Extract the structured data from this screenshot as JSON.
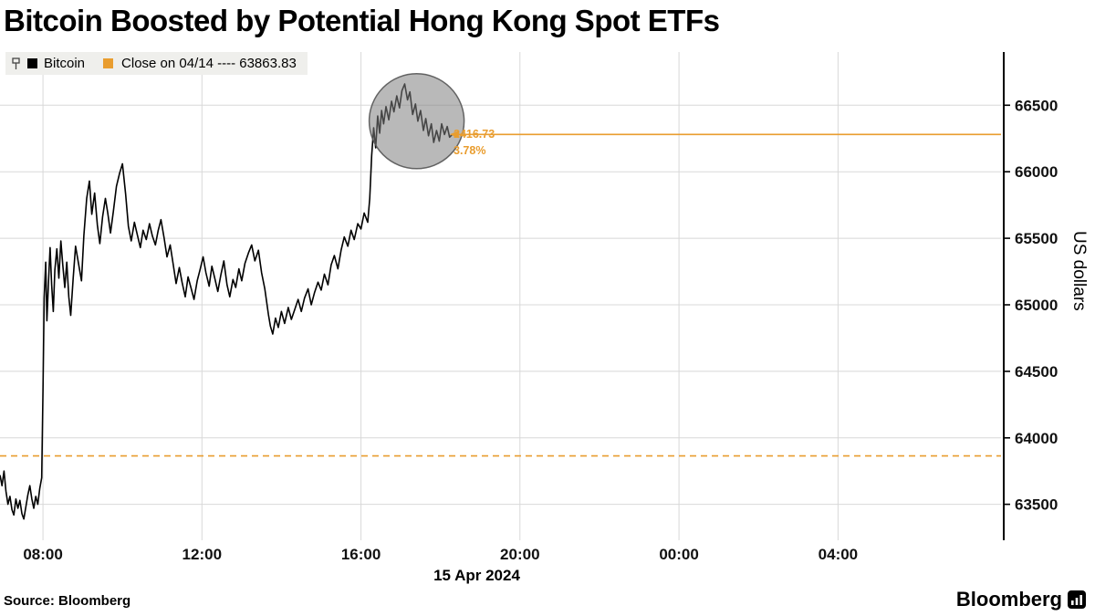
{
  "title": "Bitcoin Boosted by Potential Hong Kong Spot ETFs",
  "legend": {
    "series_label": "Bitcoin",
    "close_label": "Close on 04/14 ---- 63863.83"
  },
  "annotations": {
    "change_value": "2416.73",
    "change_pct": "3.78%"
  },
  "axes": {
    "y_title": "US dollars",
    "x_date_label": "15 Apr 2024"
  },
  "source": "Source: Bloomberg",
  "brand": "Bloomberg",
  "chart_data": {
    "type": "line",
    "title": "Bitcoin Boosted by Potential Hong Kong Spot ETFs",
    "xlabel": "15 Apr 2024",
    "ylabel": "US dollars",
    "ylim": [
      63230,
      66900
    ],
    "xlim_hours": [
      6.92,
      32.1
    ],
    "grid": true,
    "legend_position": "top-left",
    "colors": {
      "line": "#000000",
      "orange": "#e99d2f",
      "grid": "#d8d8d8",
      "axis": "#000000",
      "highlight_fill": "rgba(128,128,128,0.55)",
      "highlight_stroke": "rgba(85,85,85,0.9)"
    },
    "y_ticks": [
      63500,
      64000,
      64500,
      65000,
      65500,
      66000,
      66500
    ],
    "x_ticks": [
      {
        "hour": 8,
        "label": "08:00"
      },
      {
        "hour": 12,
        "label": "12:00"
      },
      {
        "hour": 16,
        "label": "16:00"
      },
      {
        "hour": 20,
        "label": "20:00"
      },
      {
        "hour": 24,
        "label": "00:00"
      },
      {
        "hour": 28,
        "label": "04:00"
      }
    ],
    "close_line": {
      "value": 63863.83,
      "label": "Close on 04/14 ---- 63863.83",
      "style": "dashed"
    },
    "last_line": {
      "value": 66280.56,
      "change": "2416.73",
      "pct": "3.78%"
    },
    "highlight_circle": {
      "hour": 17.4,
      "price": 66380,
      "radius_px": 52
    },
    "series": [
      {
        "name": "Bitcoin",
        "color": "#000000",
        "points": [
          [
            6.92,
            63720
          ],
          [
            6.97,
            63640
          ],
          [
            7.02,
            63750
          ],
          [
            7.07,
            63600
          ],
          [
            7.12,
            63500
          ],
          [
            7.17,
            63560
          ],
          [
            7.22,
            63460
          ],
          [
            7.27,
            63420
          ],
          [
            7.32,
            63540
          ],
          [
            7.37,
            63470
          ],
          [
            7.42,
            63530
          ],
          [
            7.47,
            63430
          ],
          [
            7.52,
            63390
          ],
          [
            7.57,
            63480
          ],
          [
            7.62,
            63570
          ],
          [
            7.67,
            63640
          ],
          [
            7.72,
            63540
          ],
          [
            7.77,
            63470
          ],
          [
            7.82,
            63560
          ],
          [
            7.87,
            63500
          ],
          [
            7.92,
            63620
          ],
          [
            7.97,
            63700
          ],
          [
            8.0,
            64350
          ],
          [
            8.03,
            65050
          ],
          [
            8.07,
            65320
          ],
          [
            8.1,
            64880
          ],
          [
            8.14,
            65180
          ],
          [
            8.18,
            65430
          ],
          [
            8.22,
            65150
          ],
          [
            8.26,
            64950
          ],
          [
            8.3,
            65260
          ],
          [
            8.35,
            65420
          ],
          [
            8.4,
            65200
          ],
          [
            8.45,
            65480
          ],
          [
            8.5,
            65300
          ],
          [
            8.55,
            65130
          ],
          [
            8.6,
            65320
          ],
          [
            8.65,
            65060
          ],
          [
            8.7,
            64920
          ],
          [
            8.76,
            65200
          ],
          [
            8.82,
            65440
          ],
          [
            8.9,
            65300
          ],
          [
            8.97,
            65180
          ],
          [
            9.03,
            65520
          ],
          [
            9.1,
            65800
          ],
          [
            9.17,
            65930
          ],
          [
            9.23,
            65680
          ],
          [
            9.3,
            65840
          ],
          [
            9.37,
            65600
          ],
          [
            9.43,
            65460
          ],
          [
            9.5,
            65660
          ],
          [
            9.57,
            65800
          ],
          [
            9.63,
            65690
          ],
          [
            9.7,
            65540
          ],
          [
            9.77,
            65700
          ],
          [
            9.85,
            65890
          ],
          [
            9.93,
            65990
          ],
          [
            10.0,
            66060
          ],
          [
            10.08,
            65830
          ],
          [
            10.15,
            65590
          ],
          [
            10.22,
            65480
          ],
          [
            10.3,
            65620
          ],
          [
            10.38,
            65520
          ],
          [
            10.45,
            65430
          ],
          [
            10.52,
            65560
          ],
          [
            10.6,
            65490
          ],
          [
            10.68,
            65610
          ],
          [
            10.75,
            65520
          ],
          [
            10.83,
            65450
          ],
          [
            10.9,
            65560
          ],
          [
            10.97,
            65640
          ],
          [
            11.05,
            65500
          ],
          [
            11.12,
            65360
          ],
          [
            11.2,
            65450
          ],
          [
            11.28,
            65300
          ],
          [
            11.35,
            65160
          ],
          [
            11.43,
            65280
          ],
          [
            11.5,
            65170
          ],
          [
            11.58,
            65060
          ],
          [
            11.65,
            65210
          ],
          [
            11.73,
            65120
          ],
          [
            11.8,
            65040
          ],
          [
            11.88,
            65180
          ],
          [
            11.95,
            65260
          ],
          [
            12.03,
            65360
          ],
          [
            12.1,
            65240
          ],
          [
            12.18,
            65140
          ],
          [
            12.25,
            65290
          ],
          [
            12.33,
            65190
          ],
          [
            12.4,
            65100
          ],
          [
            12.48,
            65230
          ],
          [
            12.55,
            65330
          ],
          [
            12.63,
            65150
          ],
          [
            12.7,
            65060
          ],
          [
            12.78,
            65190
          ],
          [
            12.85,
            65130
          ],
          [
            12.93,
            65270
          ],
          [
            13.0,
            65180
          ],
          [
            13.08,
            65310
          ],
          [
            13.17,
            65390
          ],
          [
            13.25,
            65450
          ],
          [
            13.33,
            65330
          ],
          [
            13.42,
            65410
          ],
          [
            13.5,
            65240
          ],
          [
            13.58,
            65120
          ],
          [
            13.67,
            64930
          ],
          [
            13.72,
            64840
          ],
          [
            13.78,
            64780
          ],
          [
            13.85,
            64900
          ],
          [
            13.92,
            64830
          ],
          [
            14.0,
            64950
          ],
          [
            14.08,
            64860
          ],
          [
            14.17,
            64980
          ],
          [
            14.25,
            64890
          ],
          [
            14.33,
            64960
          ],
          [
            14.42,
            65040
          ],
          [
            14.5,
            64950
          ],
          [
            14.58,
            65050
          ],
          [
            14.67,
            65120
          ],
          [
            14.75,
            65000
          ],
          [
            14.83,
            65090
          ],
          [
            14.92,
            65170
          ],
          [
            15.0,
            65110
          ],
          [
            15.08,
            65230
          ],
          [
            15.17,
            65150
          ],
          [
            15.25,
            65300
          ],
          [
            15.33,
            65370
          ],
          [
            15.42,
            65270
          ],
          [
            15.5,
            65410
          ],
          [
            15.58,
            65510
          ],
          [
            15.67,
            65440
          ],
          [
            15.75,
            65560
          ],
          [
            15.83,
            65490
          ],
          [
            15.92,
            65610
          ],
          [
            16.0,
            65570
          ],
          [
            16.08,
            65690
          ],
          [
            16.17,
            65620
          ],
          [
            16.22,
            65800
          ],
          [
            16.27,
            66120
          ],
          [
            16.32,
            66330
          ],
          [
            16.37,
            66180
          ],
          [
            16.42,
            66420
          ],
          [
            16.47,
            66290
          ],
          [
            16.52,
            66460
          ],
          [
            16.57,
            66360
          ],
          [
            16.63,
            66490
          ],
          [
            16.7,
            66390
          ],
          [
            16.77,
            66530
          ],
          [
            16.83,
            66450
          ],
          [
            16.9,
            66570
          ],
          [
            16.97,
            66480
          ],
          [
            17.03,
            66610
          ],
          [
            17.1,
            66660
          ],
          [
            17.17,
            66540
          ],
          [
            17.23,
            66600
          ],
          [
            17.3,
            66430
          ],
          [
            17.37,
            66510
          ],
          [
            17.43,
            66380
          ],
          [
            17.5,
            66460
          ],
          [
            17.57,
            66310
          ],
          [
            17.63,
            66400
          ],
          [
            17.7,
            66270
          ],
          [
            17.77,
            66360
          ],
          [
            17.83,
            66220
          ],
          [
            17.9,
            66310
          ],
          [
            17.97,
            66230
          ],
          [
            18.03,
            66360
          ],
          [
            18.1,
            66280
          ],
          [
            18.17,
            66340
          ],
          [
            18.23,
            66260
          ],
          [
            18.3,
            66281
          ]
        ]
      }
    ]
  }
}
